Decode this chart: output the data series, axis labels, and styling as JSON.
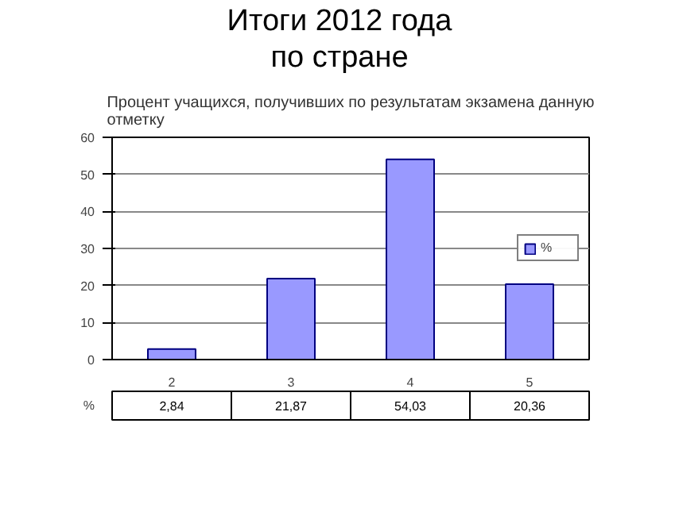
{
  "chart_data": {
    "type": "bar",
    "title": "Итоги 2012 года\nпо стране",
    "subtitle": "Процент учащихся, получивших по результатам экзамена данную отметку",
    "categories": [
      "2",
      "3",
      "4",
      "5"
    ],
    "series": [
      {
        "name": "%",
        "color": "#9999ff",
        "values": [
          2.84,
          21.87,
          54.03,
          20.36
        ]
      }
    ],
    "value_labels": [
      "2,84",
      "21,87",
      "54,03",
      "20,36"
    ],
    "ylim": [
      0,
      60
    ],
    "yticks": [
      0,
      10,
      20,
      30,
      40,
      50,
      60
    ],
    "grid": "y",
    "legend": "right"
  }
}
